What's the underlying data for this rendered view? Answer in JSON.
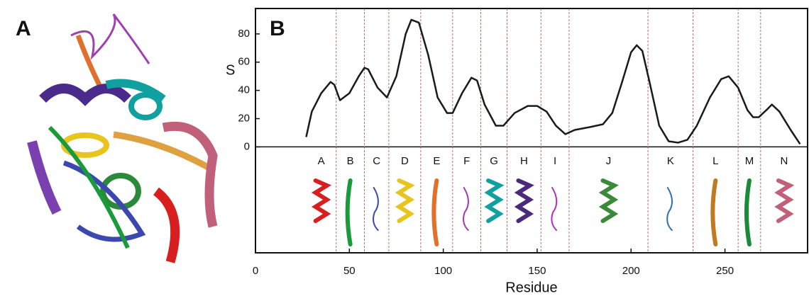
{
  "panel_a": {
    "label": "A"
  },
  "chart_data": {
    "type": "line",
    "panel_label": "B",
    "y_label": "S",
    "x_label": "Residue",
    "x": [
      27,
      30,
      35,
      40,
      42,
      45,
      50,
      55,
      58,
      60,
      65,
      70,
      75,
      80,
      83,
      87,
      92,
      97,
      102,
      105,
      110,
      115,
      118,
      122,
      128,
      132,
      138,
      145,
      150,
      155,
      160,
      165,
      170,
      178,
      185,
      190,
      195,
      200,
      203,
      206,
      210,
      215,
      220,
      225,
      230,
      235,
      242,
      248,
      252,
      257,
      262,
      265,
      268,
      272,
      275,
      279,
      285,
      290
    ],
    "series": [
      {
        "color": "#1a1a1a",
        "values": [
          7,
          25,
          38,
          46,
          44,
          33,
          38,
          50,
          56,
          55,
          42,
          35,
          50,
          80,
          90,
          88,
          65,
          35,
          24,
          24,
          38,
          49,
          47,
          30,
          15,
          15,
          24,
          29,
          29,
          25,
          15,
          9,
          12,
          14,
          16,
          24,
          45,
          67,
          72,
          68,
          45,
          15,
          4,
          3,
          5,
          15,
          35,
          48,
          50,
          42,
          26,
          21,
          21,
          26,
          30,
          25,
          12,
          2
        ]
      }
    ],
    "xlim": [
      0,
      294
    ],
    "ylim": [
      -75,
      98
    ],
    "xticks": [
      0,
      50,
      100,
      150,
      200,
      250
    ],
    "yticks": [
      0,
      20,
      40,
      60,
      80
    ],
    "boundaries": [
      43,
      58,
      71,
      88,
      105,
      120,
      134,
      152,
      167,
      209,
      233,
      257,
      269
    ],
    "segments": [
      {
        "label": "A",
        "color": "#d81e1e",
        "kind": "helix"
      },
      {
        "label": "B",
        "color": "#1a9a3a",
        "kind": "strand"
      },
      {
        "label": "C",
        "color": "#3a48b0",
        "kind": "coil"
      },
      {
        "label": "D",
        "color": "#e8c51e",
        "kind": "helix"
      },
      {
        "label": "E",
        "color": "#e0702a",
        "kind": "strand"
      },
      {
        "label": "F",
        "color": "#a03ab0",
        "kind": "coil"
      },
      {
        "label": "G",
        "color": "#10a0a0",
        "kind": "helix"
      },
      {
        "label": "H",
        "color": "#4a2a7a",
        "kind": "helix"
      },
      {
        "label": "I",
        "color": "#b030c0",
        "kind": "coil"
      },
      {
        "label": "J",
        "color": "#3a8a3a",
        "kind": "helix"
      },
      {
        "label": "K",
        "color": "#2a70c0",
        "kind": "coil"
      },
      {
        "label": "L",
        "color": "#c07a20",
        "kind": "strand"
      },
      {
        "label": "M",
        "color": "#188a38",
        "kind": "strand"
      },
      {
        "label": "N",
        "color": "#c0607a",
        "kind": "helix"
      }
    ]
  }
}
